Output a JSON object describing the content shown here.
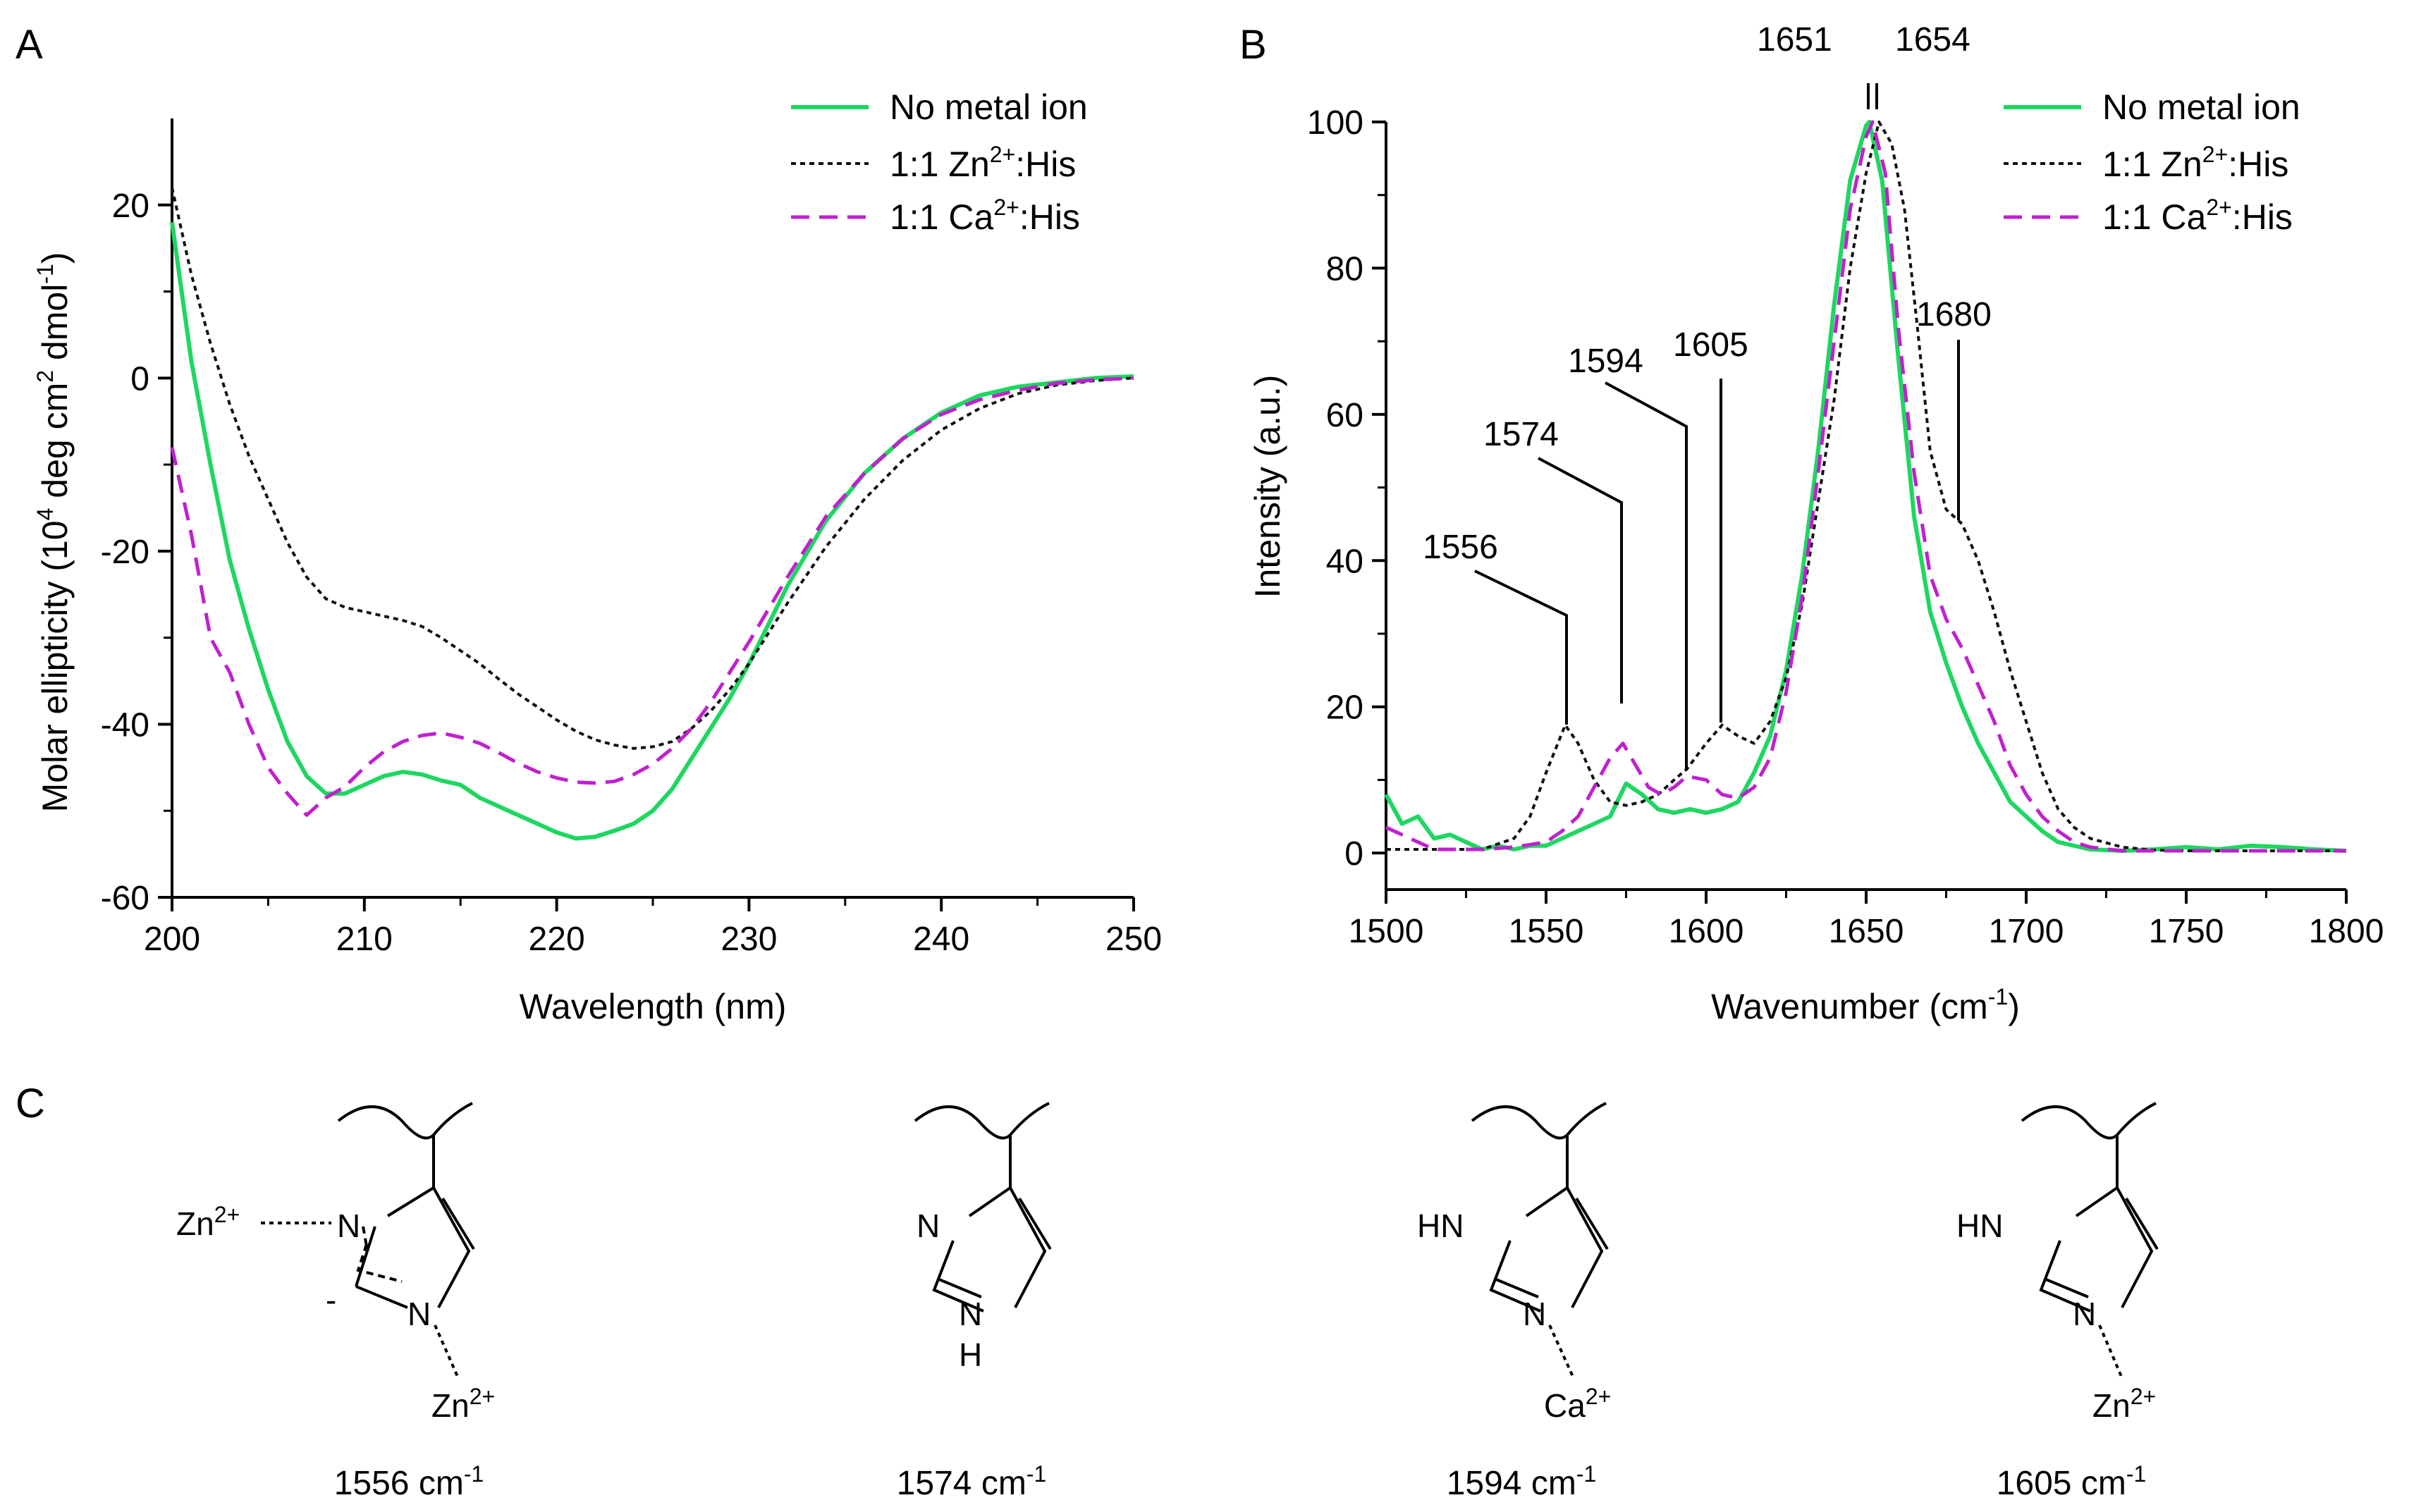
{
  "chart_data": [
    {
      "panel": "A",
      "type": "line",
      "xlabel": "Wavelength (nm)",
      "ylabel": "Molar ellipticity (10^4 deg cm^2 dmol^-1)",
      "ylabel_parts": {
        "pre": "Molar ellipticity (10",
        "e1": "4",
        "mid": " deg cm",
        "e2": "2",
        "mid2": " dmol",
        "e3": "-1",
        "post": ")"
      },
      "xlim": [
        200,
        250
      ],
      "ylim": [
        -60,
        30
      ],
      "xticks": [
        200,
        210,
        220,
        230,
        240,
        250
      ],
      "yticks": [
        20,
        0,
        -20,
        -40,
        -60
      ],
      "legend_position": "top-right",
      "series": [
        {
          "name": "No metal ion",
          "label": "No metal ion",
          "color": "#1ed760",
          "style": "solid",
          "x": [
            200,
            201,
            202,
            203,
            204,
            205,
            206,
            207,
            208,
            209,
            210,
            211,
            212,
            213,
            214,
            215,
            216,
            217,
            218,
            219,
            220,
            221,
            222,
            223,
            224,
            225,
            226,
            227,
            228,
            229,
            230,
            232,
            234,
            236,
            238,
            240,
            242,
            244,
            246,
            248,
            250
          ],
          "y": [
            18,
            2,
            -10,
            -21,
            -29,
            -36,
            -42,
            -46,
            -48,
            -48,
            -47,
            -46,
            -45.5,
            -45.8,
            -46.5,
            -47,
            -48.5,
            -49.5,
            -50.5,
            -51.5,
            -52.5,
            -53.2,
            -53,
            -52.3,
            -51.5,
            -50,
            -47.5,
            -44,
            -40.5,
            -37,
            -33,
            -24,
            -16.5,
            -11,
            -7,
            -4,
            -2,
            -1,
            -0.5,
            0,
            0.2
          ]
        },
        {
          "name": "1:1 Zn2+:His",
          "pre": "1:1 Zn",
          "sup": "2+",
          "post": ":His",
          "color": "#111111",
          "style": "dotted",
          "x": [
            200,
            201,
            202,
            203,
            204,
            205,
            206,
            207,
            208,
            209,
            210,
            211,
            212,
            213,
            214,
            215,
            216,
            217,
            218,
            219,
            220,
            221,
            222,
            223,
            224,
            225,
            226,
            227,
            228,
            229,
            230,
            232,
            234,
            236,
            238,
            240,
            242,
            244,
            246,
            248,
            250
          ],
          "y": [
            22,
            12,
            4,
            -3,
            -9,
            -14,
            -19,
            -23,
            -25.5,
            -26.5,
            -27,
            -27.5,
            -28,
            -28.7,
            -30,
            -31.5,
            -33,
            -34.8,
            -36.5,
            -38,
            -39.5,
            -40.8,
            -41.8,
            -42.4,
            -42.8,
            -42.6,
            -42,
            -40.5,
            -38.5,
            -36,
            -33,
            -26,
            -19.5,
            -14,
            -9.5,
            -6,
            -3.5,
            -1.8,
            -0.8,
            -0.3,
            0
          ]
        },
        {
          "name": "1:1 Ca2+:His",
          "pre": "1:1 Ca",
          "sup": "2+",
          "post": ":His",
          "color": "#c020d0",
          "style": "dashed",
          "x": [
            200,
            201,
            202,
            203,
            204,
            205,
            206,
            207,
            208,
            209,
            210,
            211,
            212,
            213,
            214,
            215,
            216,
            217,
            218,
            219,
            220,
            221,
            222,
            223,
            224,
            225,
            226,
            227,
            228,
            229,
            230,
            232,
            234,
            236,
            238,
            240,
            242,
            244,
            246,
            248,
            250
          ],
          "y": [
            -8,
            -18,
            -30,
            -34,
            -40,
            -45,
            -48,
            -50.5,
            -48.5,
            -47.2,
            -45,
            -43.2,
            -42,
            -41.3,
            -41,
            -41.5,
            -42.2,
            -43.3,
            -44.5,
            -45.5,
            -46.2,
            -46.7,
            -46.8,
            -46.6,
            -45.8,
            -44.6,
            -42.8,
            -40.5,
            -37.5,
            -34,
            -30.5,
            -23,
            -16,
            -11,
            -7,
            -4.2,
            -2.5,
            -1.4,
            -0.6,
            -0.2,
            0
          ]
        }
      ]
    },
    {
      "panel": "B",
      "type": "line",
      "xlabel": "Wavenumber (cm-1)",
      "xlabel_parts": {
        "pre": "Wavenumber (cm",
        "sup": "-1",
        "post": ")"
      },
      "ylabel": "Intensity (a.u.)",
      "xlim": [
        1500,
        1800
      ],
      "ylim": [
        -5,
        100
      ],
      "xticks": [
        1500,
        1550,
        1600,
        1650,
        1700,
        1750,
        1800
      ],
      "yticks": [
        0,
        20,
        40,
        60,
        80,
        100
      ],
      "legend_position": "top-right",
      "annotations": [
        "1556",
        "1574",
        "1594",
        "1605",
        "1651",
        "1654",
        "1680"
      ],
      "series": [
        {
          "name": "No metal ion",
          "color": "#1ed760",
          "style": "solid",
          "x": [
            1500,
            1505,
            1510,
            1515,
            1520,
            1525,
            1530,
            1535,
            1540,
            1545,
            1550,
            1555,
            1560,
            1565,
            1570,
            1575,
            1580,
            1585,
            1590,
            1595,
            1600,
            1605,
            1610,
            1615,
            1620,
            1625,
            1630,
            1635,
            1640,
            1645,
            1650,
            1651,
            1655,
            1660,
            1665,
            1670,
            1675,
            1680,
            1685,
            1690,
            1695,
            1700,
            1705,
            1710,
            1720,
            1730,
            1740,
            1750,
            1760,
            1770,
            1780,
            1790,
            1800
          ],
          "y": [
            8,
            4,
            5,
            2,
            2.5,
            1.5,
            0.5,
            1,
            0.5,
            1,
            1,
            2,
            3,
            4,
            5,
            9.5,
            8,
            6,
            5.5,
            6,
            5.5,
            6,
            7,
            11,
            16,
            25,
            38,
            55,
            75,
            92,
            99.5,
            100,
            92,
            68,
            46,
            33,
            26,
            20,
            15,
            11,
            7,
            5,
            3,
            1.5,
            0.5,
            0.3,
            0.5,
            0.8,
            0.5,
            1,
            0.8,
            0.5,
            0.3
          ]
        },
        {
          "name": "1:1 Zn2+:His",
          "color": "#111111",
          "style": "dotted",
          "x": [
            1500,
            1510,
            1520,
            1530,
            1540,
            1545,
            1550,
            1556,
            1560,
            1565,
            1570,
            1575,
            1580,
            1585,
            1590,
            1594,
            1600,
            1605,
            1610,
            1615,
            1620,
            1625,
            1630,
            1635,
            1640,
            1645,
            1650,
            1654,
            1658,
            1662,
            1666,
            1670,
            1675,
            1680,
            1685,
            1690,
            1695,
            1700,
            1705,
            1710,
            1715,
            1720,
            1730,
            1740,
            1750,
            1760,
            1770,
            1780,
            1790,
            1800
          ],
          "y": [
            0.5,
            0.5,
            0.5,
            0.5,
            2,
            5,
            11,
            17.5,
            15,
            10,
            7,
            6.5,
            7,
            8,
            10,
            11.5,
            15,
            17.5,
            16,
            15,
            18,
            24,
            34,
            48,
            62,
            80,
            93,
            100,
            97,
            88,
            72,
            55,
            47,
            45,
            40,
            33,
            25,
            18,
            11,
            6,
            3.5,
            2,
            0.8,
            0.4,
            0.3,
            0.3,
            0.3,
            0.3,
            0.3,
            0.3
          ]
        },
        {
          "name": "1:1 Ca2+:His",
          "color": "#c020d0",
          "style": "dashed",
          "x": [
            1500,
            1505,
            1510,
            1515,
            1520,
            1525,
            1530,
            1540,
            1550,
            1555,
            1560,
            1565,
            1570,
            1574,
            1578,
            1582,
            1586,
            1590,
            1594,
            1600,
            1605,
            1610,
            1615,
            1620,
            1625,
            1630,
            1635,
            1640,
            1645,
            1650,
            1652,
            1656,
            1660,
            1665,
            1670,
            1675,
            1680,
            1685,
            1690,
            1695,
            1700,
            1705,
            1710,
            1715,
            1720,
            1730,
            1740,
            1750,
            1760,
            1770,
            1780,
            1790,
            1800
          ],
          "y": [
            3.5,
            2.5,
            1.5,
            0.5,
            0.5,
            0.5,
            0.5,
            0.8,
            1.5,
            3,
            5,
            9,
            13,
            15,
            12,
            9,
            8,
            9,
            10.5,
            10,
            8,
            7.5,
            9,
            13,
            22,
            35,
            52,
            70,
            88,
            98,
            100,
            93,
            72,
            52,
            38,
            32,
            28,
            23,
            18,
            12,
            8,
            5,
            3,
            1.5,
            0.8,
            0.3,
            0.3,
            0.3,
            0.3,
            0.3,
            0.3,
            0.3,
            0.3
          ]
        }
      ]
    }
  ],
  "panels": {
    "a": {
      "letter": "A"
    },
    "b": {
      "letter": "B"
    },
    "c": {
      "letter": "C"
    }
  },
  "panel_c": {
    "structures": [
      {
        "id": "s1556",
        "caption": "1556 cm",
        "caption_sup": "-1",
        "zn_top": "Zn",
        "zn_bottom": "Zn",
        "charge": "2+",
        "minus": "-",
        "n1": "N",
        "n3": "N"
      },
      {
        "id": "s1574",
        "caption": "1574 cm",
        "caption_sup": "-1",
        "n1": "N",
        "n3": "N",
        "h": "H"
      },
      {
        "id": "s1594",
        "caption": "1594 cm",
        "caption_sup": "-1",
        "hn": "HN",
        "n3": "N",
        "metal": "Ca",
        "charge": "2+"
      },
      {
        "id": "s1605",
        "caption": "1605 cm",
        "caption_sup": "-1",
        "hn": "HN",
        "n3": "N",
        "metal": "Zn",
        "charge": "2+"
      }
    ]
  }
}
